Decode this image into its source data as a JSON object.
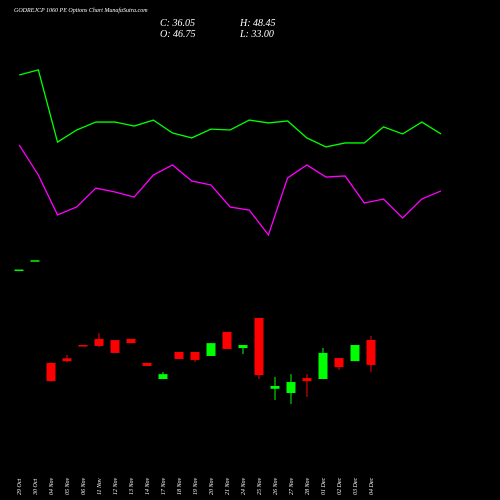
{
  "chart_data": {
    "type": "candlestick",
    "title": "GODREJCP 1060 PE Options Chart MunafaSutra.com",
    "ohlc_labels": [
      "C: 36.05",
      "H: 48.45",
      "O: 46.75",
      "L: 33.00"
    ],
    "categories": [
      "29 Oct",
      "30 Oct",
      "04 Nov",
      "05 Nov",
      "06 Nov",
      "11 Nov",
      "12 Nov",
      "13 Nov",
      "14 Nov",
      "17 Nov",
      "18 Nov",
      "19 Nov",
      "20 Nov",
      "21 Nov",
      "24 Nov",
      "25 Nov",
      "26 Nov",
      "27 Nov",
      "28 Nov",
      "01 Dec",
      "02 Dec",
      "03 Dec",
      "04 Dec"
    ],
    "open": [
      77,
      81,
      36.9,
      38.9,
      44.6,
      47.2,
      46.7,
      47.2,
      36.9,
      30,
      41.6,
      41.6,
      39.9,
      50.2,
      43.3,
      56.2,
      25.8,
      24,
      30.4,
      30,
      39,
      37.7,
      46.75
    ],
    "high": [
      77,
      81,
      37,
      40.3,
      44.6,
      49.7,
      46.7,
      47.2,
      36.9,
      33,
      41.6,
      41.6,
      45.4,
      50.2,
      44.6,
      56.2,
      30.9,
      32.1,
      32.1,
      43.3,
      39,
      44.6,
      48.45
    ],
    "low": [
      77,
      81,
      29,
      37.3,
      44.3,
      43.7,
      41.2,
      45.4,
      35.6,
      30,
      38.6,
      37.3,
      39.9,
      42.9,
      40.7,
      30,
      21,
      19.3,
      22.3,
      30,
      33.9,
      37.7,
      33
    ],
    "close": [
      77,
      81,
      29.1,
      37.7,
      44.3,
      44.2,
      41.2,
      45.4,
      35.6,
      32.1,
      38.6,
      38.2,
      45.4,
      42.9,
      44.6,
      31.7,
      27,
      28.7,
      29.1,
      41.2,
      35.1,
      44.6,
      36.05
    ],
    "ylim": [
      12.4,
      85.4
    ],
    "up_color": "#00ff00",
    "down_color": "#ff0000",
    "indicators": {
      "ylim": [
        0,
        100
      ],
      "series": [
        {
          "color": "#00ff00",
          "values": [
            84.1,
            86.4,
            53.6,
            59.1,
            62.7,
            62.7,
            60.9,
            63.6,
            57.7,
            55.5,
            59.5,
            59.1,
            63.6,
            62.3,
            63.2,
            55.5,
            51.4,
            53.2,
            53.2,
            60.5,
            57.3,
            62.7,
            57.3
          ]
        },
        {
          "color": "#ff00ff",
          "values": [
            52.3,
            38.6,
            20.5,
            24.1,
            32.7,
            30.9,
            28.6,
            38.6,
            43.2,
            35.9,
            34.1,
            24.1,
            22.7,
            11.4,
            37.3,
            43.2,
            37.7,
            38.2,
            25.9,
            27.7,
            19.1,
            27.7,
            31.4
          ]
        }
      ]
    }
  }
}
